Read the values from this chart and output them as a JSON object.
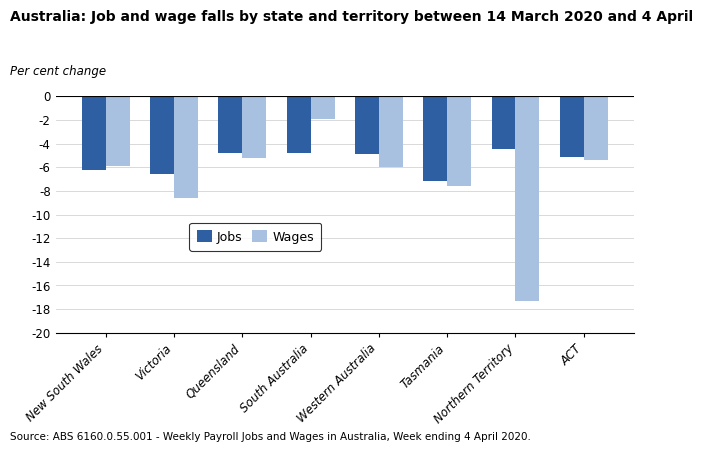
{
  "title": "Australia: Job and wage falls by state and territory between 14 March 2020 and 4 April",
  "ylabel": "Per cent change",
  "states": [
    "New South Wales",
    "Victoria",
    "Queensland",
    "South Australia",
    "Western Australia",
    "Tasmania",
    "Northern Territory",
    "ACT"
  ],
  "jobs": [
    -6.2,
    -6.6,
    -4.8,
    -4.8,
    -4.9,
    -7.2,
    -4.5,
    -5.1
  ],
  "wages": [
    -5.9,
    -8.6,
    -5.2,
    -1.9,
    -6.0,
    -7.6,
    -17.3,
    -5.4
  ],
  "jobs_color": "#2E5FA3",
  "wages_color": "#A8C1E0",
  "ylim": [
    -20,
    0
  ],
  "yticks": [
    0,
    -2,
    -4,
    -6,
    -8,
    -10,
    -12,
    -14,
    -16,
    -18,
    -20
  ],
  "source": "Source: ABS 6160.0.55.001 - Weekly Payroll Jobs and Wages in Australia, Week ending 4 April 2020.",
  "legend_labels": [
    "Jobs",
    "Wages"
  ],
  "bar_width": 0.35
}
